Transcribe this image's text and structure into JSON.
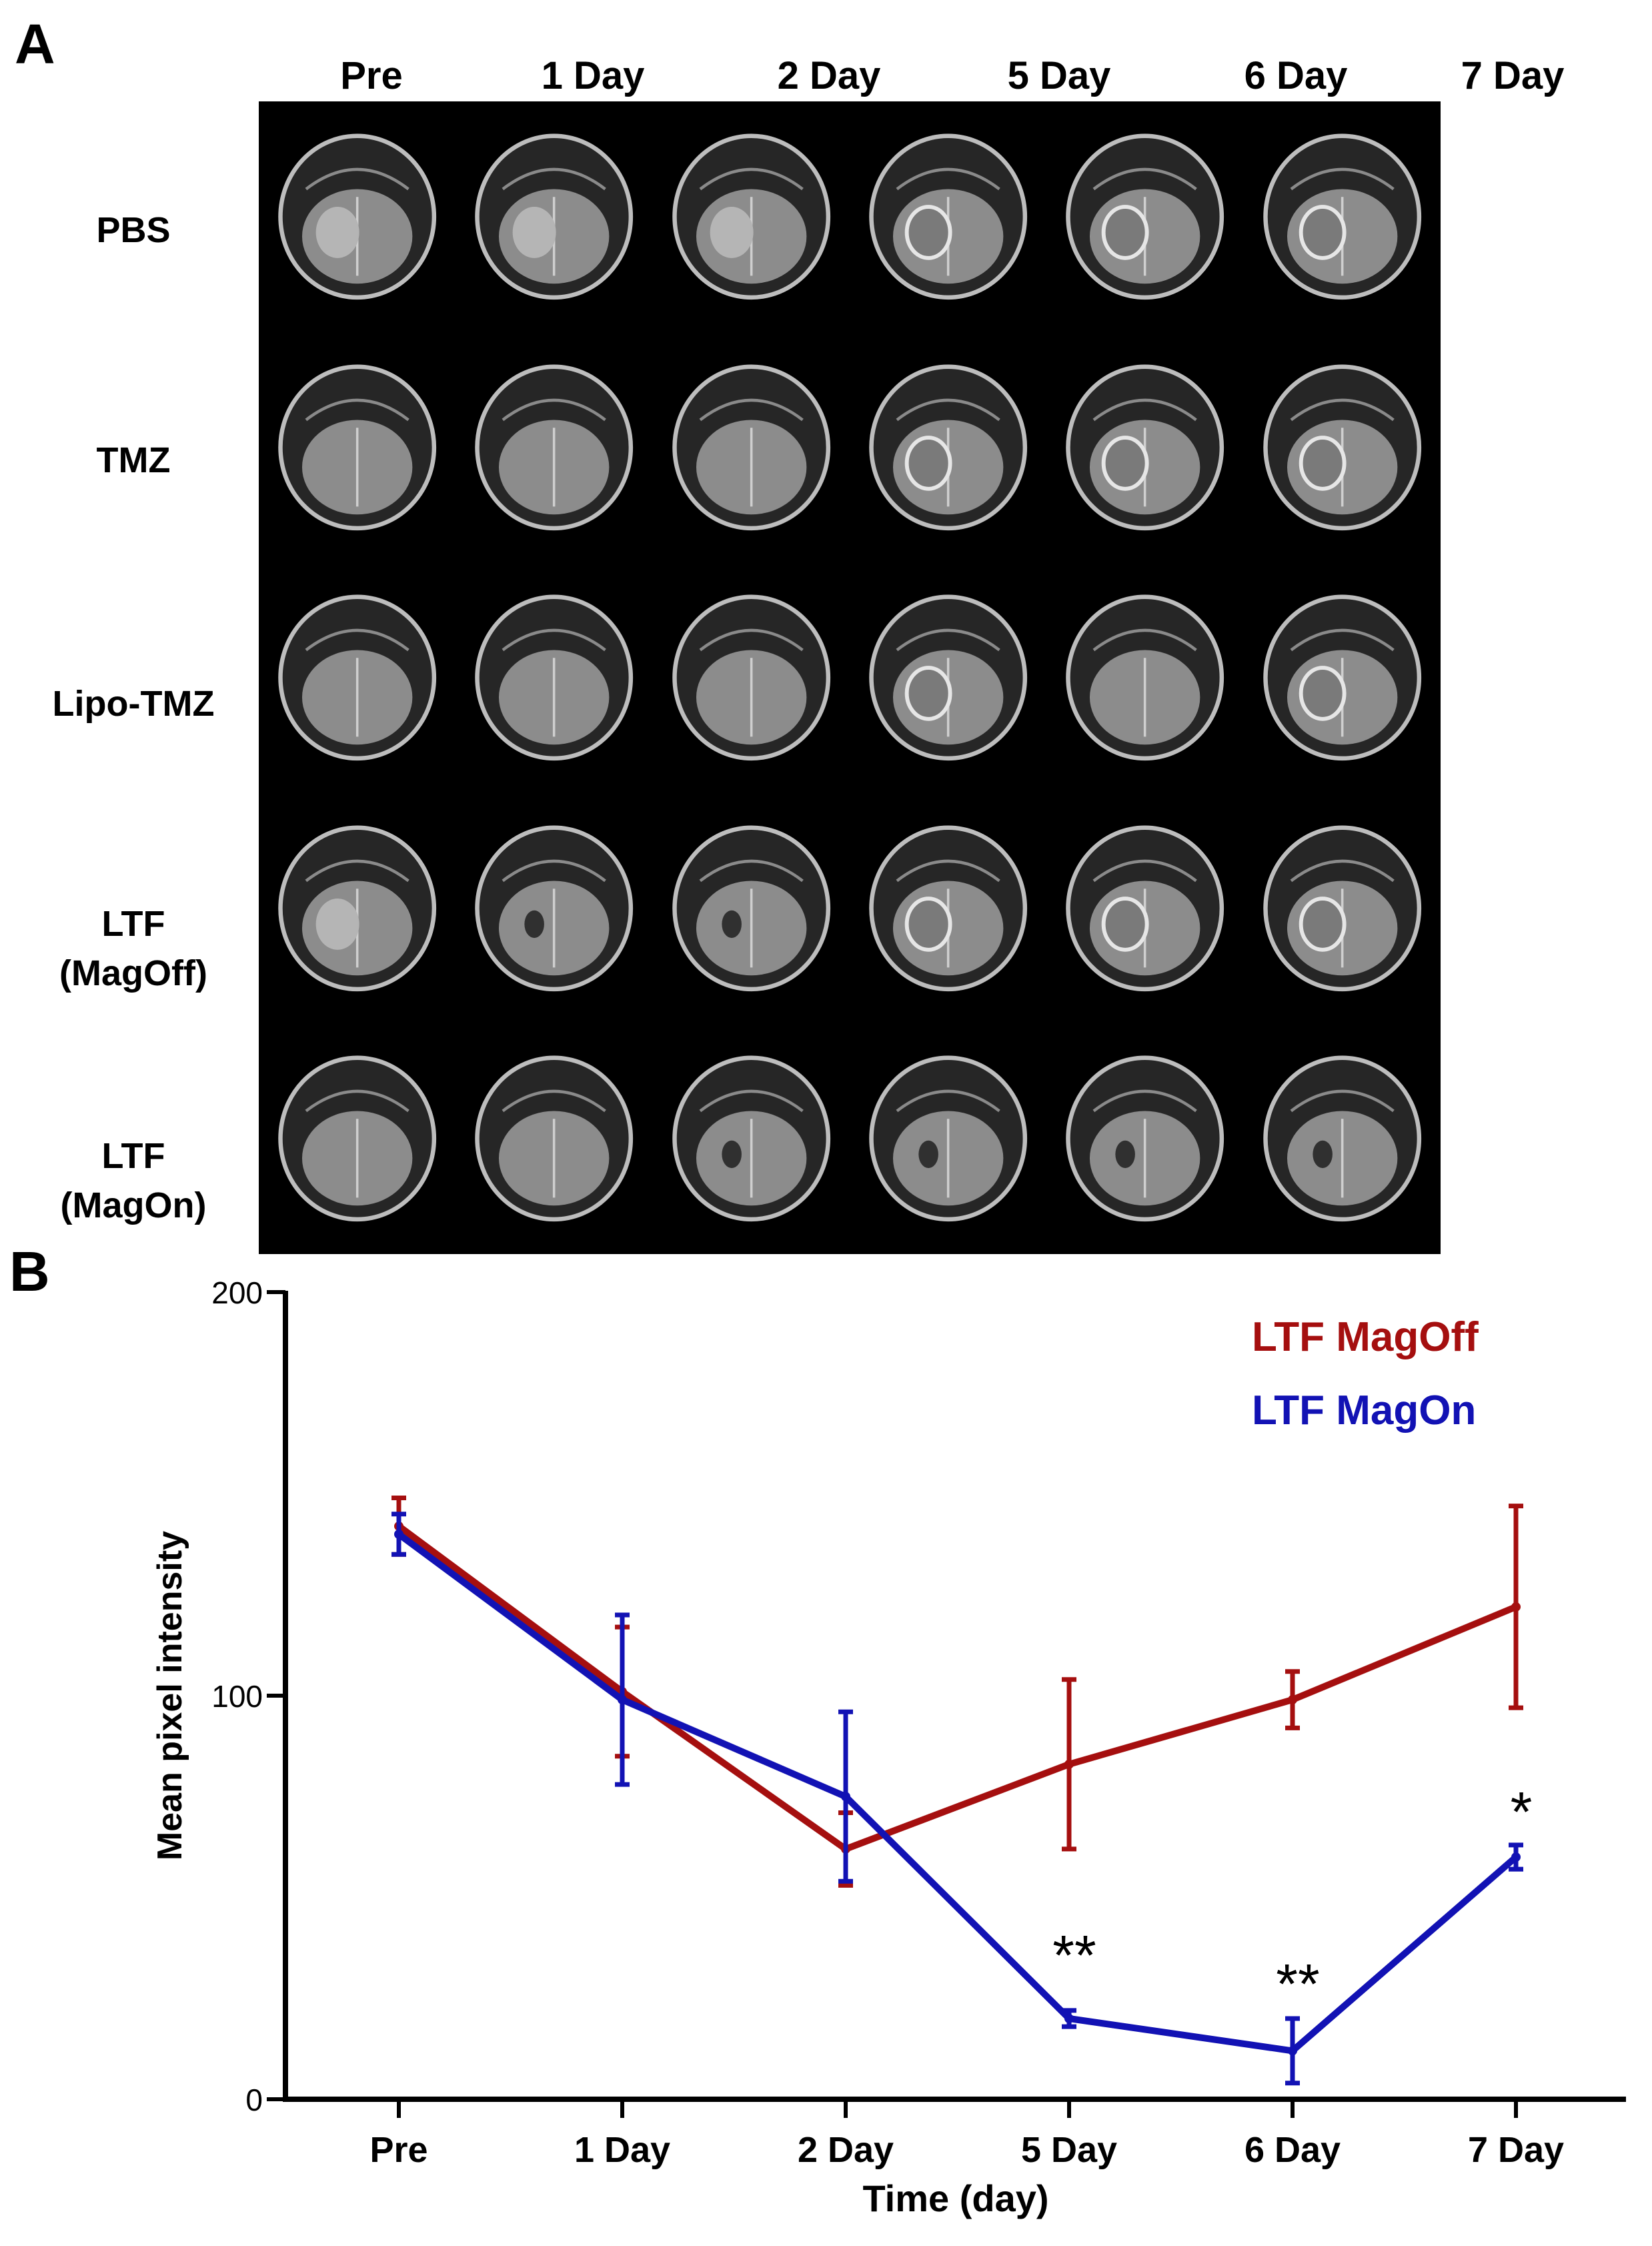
{
  "panel_a": {
    "letter": "A",
    "columns": [
      "Pre",
      "1 Day",
      "2 Day",
      "5 Day",
      "6 Day",
      "7 Day"
    ],
    "rows": [
      {
        "line1": "PBS",
        "line2": ""
      },
      {
        "line1": "TMZ",
        "line2": ""
      },
      {
        "line1": "Lipo-TMZ",
        "line2": ""
      },
      {
        "line1": "LTF",
        "line2": "(MagOff)"
      },
      {
        "line1": "LTF",
        "line2": "(MagOn)"
      }
    ]
  },
  "panel_b": {
    "letter": "B"
  },
  "chart_data": {
    "type": "line",
    "categories": [
      "Pre",
      "1 Day",
      "2 Day",
      "5 Day",
      "6 Day",
      "7 Day"
    ],
    "xlabel": "Time (day)",
    "ylabel": "Mean pixel intensity",
    "ylim": [
      0,
      200
    ],
    "yticks": [
      0,
      100,
      200
    ],
    "legend_position": "top-right",
    "series": [
      {
        "name": "LTF MagOff",
        "color": "#a50f0f",
        "values": [
          142,
          101,
          62,
          83,
          99,
          122
        ],
        "errors": [
          7,
          16,
          9,
          21,
          7,
          25
        ]
      },
      {
        "name": "LTF MagOn",
        "color": "#1212b4",
        "values": [
          140,
          99,
          75,
          20,
          12,
          60
        ],
        "errors": [
          5,
          21,
          21,
          2,
          8,
          3
        ]
      }
    ],
    "annotations": [
      {
        "category": "5 Day",
        "text": "**"
      },
      {
        "category": "6 Day",
        "text": "**"
      },
      {
        "category": "7 Day",
        "text": "*"
      }
    ]
  }
}
